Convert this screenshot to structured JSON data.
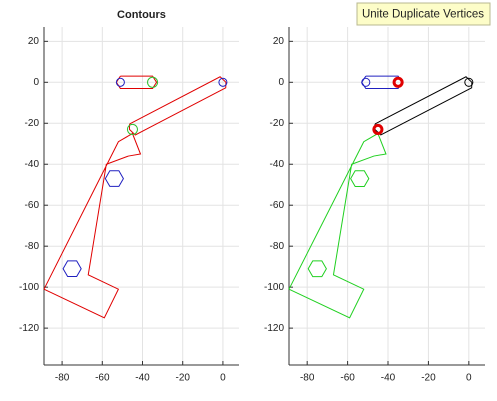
{
  "tooltip": "Unite Duplicate Vertices",
  "chart_data": [
    {
      "type": "contour",
      "title": "Contours",
      "grid": true,
      "xlim": [
        -89,
        8
      ],
      "ylim": [
        -138,
        27
      ],
      "xticks": [
        -80,
        -60,
        -40,
        -20,
        0
      ],
      "yticks": [
        20,
        0,
        -20,
        -40,
        -60,
        -80,
        -100,
        -120
      ],
      "series": [
        {
          "kind": "polygon",
          "color": "#e00000",
          "x": [
            -89,
            -59,
            -52,
            -67,
            -58,
            -47,
            -41,
            -45,
            -52,
            -89
          ],
          "y": [
            -101,
            -115,
            -101,
            -94,
            -40,
            -36,
            -35,
            -25,
            -29,
            -101
          ]
        },
        {
          "kind": "polygon",
          "color": "#e00000",
          "x": [
            -51,
            -35,
            -33,
            -35,
            -51,
            -53,
            -51
          ],
          "y": [
            3,
            3,
            0,
            -3,
            -3,
            0,
            3
          ]
        },
        {
          "kind": "polygon",
          "color": "#e00000",
          "x": [
            -46.4,
            -1.4,
            1.5,
            1.4,
            -43.6,
            -46.5,
            -46.4
          ],
          "y": [
            -20.3,
            2.7,
            0,
            -2.7,
            -25.7,
            -23,
            -20.3
          ]
        },
        {
          "kind": "circle",
          "color": "#2020c0",
          "cx": -51,
          "cy": 0,
          "r": 2
        },
        {
          "kind": "circle",
          "color": "#30c030",
          "cx": -35,
          "cy": 0,
          "r": 2.5
        },
        {
          "kind": "circle",
          "color": "#30c030",
          "cx": -45,
          "cy": -23,
          "r": 2.5
        },
        {
          "kind": "circle",
          "color": "#2020c0",
          "cx": 0,
          "cy": 0,
          "r": 2
        },
        {
          "kind": "hexagon",
          "color": "#2020c0",
          "cx": -54,
          "cy": -47,
          "r": 4.5
        },
        {
          "kind": "hexagon",
          "color": "#2020c0",
          "cx": -75,
          "cy": -91,
          "r": 4.5
        }
      ]
    },
    {
      "type": "contour",
      "grid": true,
      "xlim": [
        -89,
        8
      ],
      "ylim": [
        -138,
        27
      ],
      "xticks": [
        -80,
        -60,
        -40,
        -20,
        0
      ],
      "yticks": [
        20,
        0,
        -20,
        -40,
        -60,
        -80,
        -100,
        -120
      ],
      "series": [
        {
          "kind": "polygon",
          "color": "#20d020",
          "x": [
            -89,
            -59,
            -52,
            -67,
            -58,
            -47,
            -41,
            -45,
            -52,
            -89
          ],
          "y": [
            -101,
            -115,
            -101,
            -94,
            -40,
            -36,
            -35,
            -25,
            -29,
            -101
          ]
        },
        {
          "kind": "polygon",
          "color": "#2020c0",
          "x": [
            -51,
            -35,
            -33,
            -35,
            -51,
            -53,
            -51
          ],
          "y": [
            3,
            3,
            0,
            -3,
            -3,
            0,
            3
          ]
        },
        {
          "kind": "polygon",
          "color": "#000000",
          "x": [
            -46.4,
            -1.4,
            1.5,
            1.4,
            -43.6,
            -46.5,
            -46.4
          ],
          "y": [
            -20.3,
            2.7,
            0,
            -2.7,
            -25.7,
            -23,
            -20.3
          ]
        },
        {
          "kind": "circle",
          "color": "#2020c0",
          "cx": -51,
          "cy": 0,
          "r": 2
        },
        {
          "kind": "ring",
          "color": "#e00000",
          "cx": -35,
          "cy": 0,
          "r": 2
        },
        {
          "kind": "ring",
          "color": "#e00000",
          "cx": -45,
          "cy": -23,
          "r": 2
        },
        {
          "kind": "circle",
          "color": "#000000",
          "cx": 0,
          "cy": 0,
          "r": 2
        },
        {
          "kind": "hexagon",
          "color": "#20d020",
          "cx": -54,
          "cy": -47,
          "r": 4.5
        },
        {
          "kind": "hexagon",
          "color": "#20d020",
          "cx": -75,
          "cy": -91,
          "r": 4.5
        }
      ]
    }
  ]
}
